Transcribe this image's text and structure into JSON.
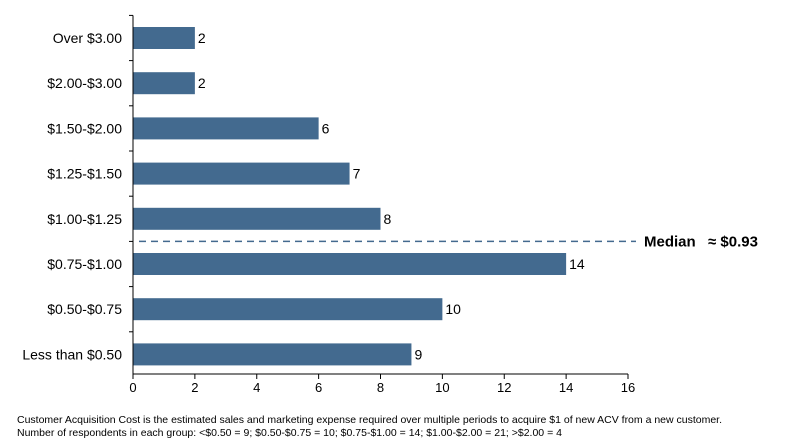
{
  "chart_data": {
    "type": "bar",
    "orientation": "horizontal",
    "categories": [
      "Over $3.00",
      "$2.00-$3.00",
      "$1.50-$2.00",
      "$1.25-$1.50",
      "$1.00-$1.25",
      "$0.75-$1.00",
      "$0.50-$0.75",
      "Less than $0.50"
    ],
    "values": [
      2,
      2,
      6,
      7,
      8,
      14,
      10,
      9
    ],
    "xlim": [
      0,
      16
    ],
    "xticks": [
      0,
      2,
      4,
      6,
      8,
      10,
      12,
      14,
      16
    ],
    "bar_color": "#436a8f",
    "grid": false,
    "annotation": {
      "label": "Median",
      "value_text": "≈ $0.93",
      "style": "dashed line between $1.00-$1.25 and $0.75-$1.00",
      "color": "#436a8f"
    }
  },
  "footnotes": [
    "Customer Acquisition Cost is the estimated sales and marketing expense required over multiple  periods to acquire $1 of new ACV from a new customer.",
    "Number of respondents in each group: <$0.50 = 9; $0.50-$0.75 = 10; $0.75-$1.00 = 14; $1.00-$2.00 = 21; >$2.00 = 4"
  ]
}
